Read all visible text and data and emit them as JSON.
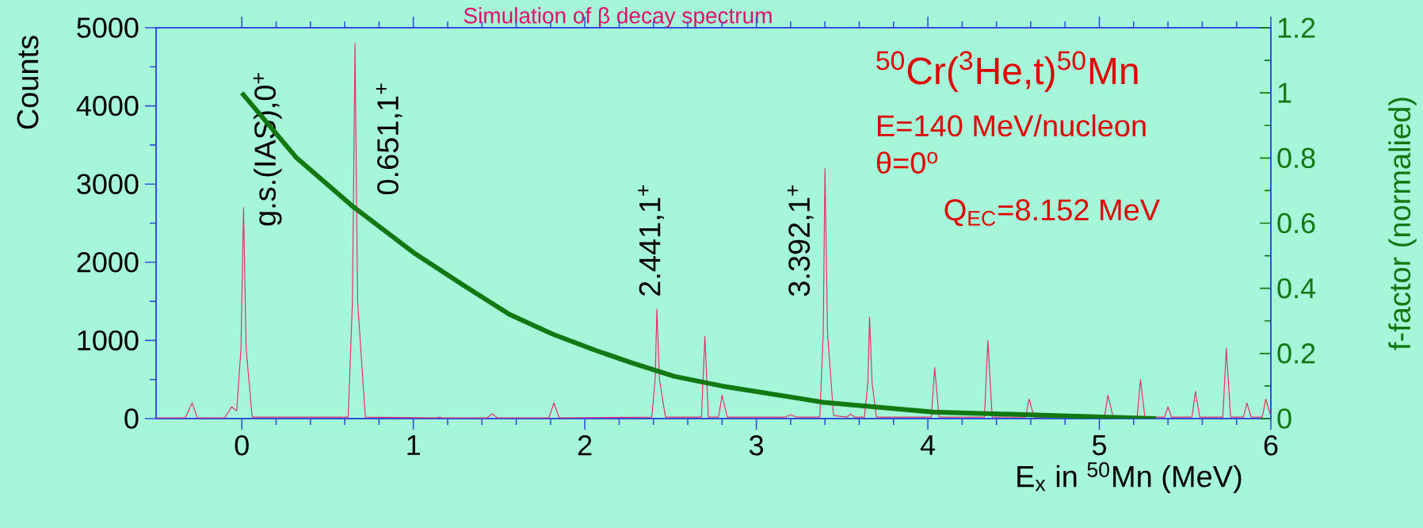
{
  "chart_data": {
    "type": "line",
    "title": "Simulation of β decay spectrum",
    "xlabel": "E$_{x}$ in $^{50}$Mn (MeV)",
    "ylabel": "Counts",
    "y2label": "f-factor (normalied)",
    "xlim": [
      -0.5,
      6
    ],
    "xticks": [
      0,
      1,
      2,
      3,
      4,
      5,
      6
    ],
    "ylim": [
      0,
      5000
    ],
    "yticks": [
      0,
      1000,
      2000,
      3000,
      4000,
      5000
    ],
    "y2lim": [
      0,
      1.2
    ],
    "y2ticks": [
      0,
      0.2,
      0.4,
      0.6,
      0.8,
      1,
      1.2
    ],
    "series": [
      {
        "color": "#e8306a",
        "x": [
          -0.5,
          -0.33,
          -0.29,
          -0.26,
          -0.1,
          -0.06,
          -0.03,
          -0.005,
          0.01,
          0.025,
          0.06,
          0.62,
          0.645,
          0.66,
          0.675,
          0.72,
          1.13,
          1.15,
          1.17,
          1.43,
          1.46,
          1.49,
          1.79,
          1.82,
          1.85,
          2.39,
          2.41,
          2.42,
          2.435,
          2.47,
          2.68,
          2.7,
          2.72,
          2.78,
          2.8,
          2.83,
          3.17,
          3.2,
          3.23,
          3.37,
          3.39,
          3.4,
          3.415,
          3.45,
          3.53,
          3.55,
          3.57,
          3.63,
          3.65,
          3.66,
          3.675,
          3.7,
          4.02,
          4.04,
          4.065,
          4.33,
          4.35,
          4.375,
          4.57,
          4.59,
          4.62,
          5.03,
          5.05,
          5.08,
          5.22,
          5.24,
          5.265,
          5.38,
          5.4,
          5.42,
          5.54,
          5.56,
          5.585,
          5.72,
          5.74,
          5.765,
          5.84,
          5.86,
          5.885,
          5.95,
          5.97,
          6.0
        ],
        "values": [
          10,
          10,
          200,
          10,
          10,
          150,
          100,
          900,
          2700,
          900,
          20,
          20,
          1500,
          4800,
          1500,
          20,
          10,
          20,
          10,
          10,
          60,
          10,
          10,
          200,
          10,
          20,
          500,
          1400,
          500,
          20,
          20,
          1050,
          20,
          20,
          300,
          20,
          20,
          50,
          20,
          20,
          1100,
          3200,
          1100,
          40,
          20,
          60,
          20,
          20,
          450,
          1300,
          450,
          20,
          20,
          650,
          20,
          20,
          1000,
          20,
          20,
          250,
          20,
          20,
          300,
          20,
          20,
          500,
          20,
          20,
          150,
          20,
          20,
          350,
          20,
          20,
          900,
          20,
          20,
          200,
          20,
          20,
          250,
          30
        ]
      },
      {
        "axis": "y2",
        "color": "#127812",
        "x": [
          0,
          0.32,
          0.65,
          1.0,
          1.29,
          1.56,
          1.81,
          2.06,
          2.28,
          2.52,
          2.8,
          3.39,
          4.03,
          4.71,
          5.33
        ],
        "values": [
          1.0,
          0.8,
          0.65,
          0.51,
          0.41,
          0.32,
          0.26,
          0.21,
          0.17,
          0.13,
          0.1,
          0.05,
          0.02,
          0.01,
          0.0
        ]
      }
    ],
    "annotations": [
      "g.s.(IAS),0$^{+}$",
      "0.651,1$^{+}$",
      "2.441,1$^{+}$",
      "3.392,1$^{+}$",
      "$^{50}$Cr($^{3}$He,t)$^{50}$Mn",
      "E=140 MeV/nucleon",
      "θ=0$^{o}$",
      "Q$_{EC}$=8.152 MeV"
    ]
  }
}
